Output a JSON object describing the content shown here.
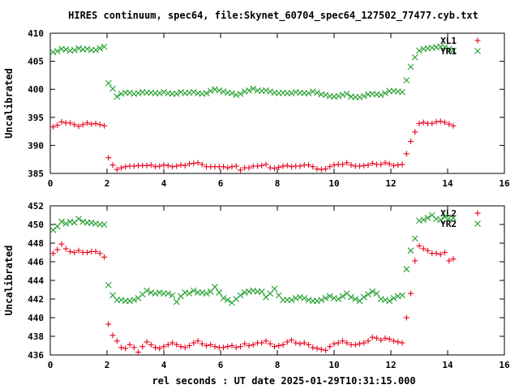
{
  "figure": {
    "title": "HIRES continuum, spec64, file:Skynet_60704_spec64_127502_77477.cyb.txt"
  },
  "colors": {
    "L": "#e8001c",
    "R": "#1e9e2a",
    "axis": "#000000"
  },
  "chart_data": [
    {
      "type": "scatter",
      "xlabel": "",
      "ylabel": "Uncalibrated",
      "xlim": [
        0,
        16
      ],
      "ylim": [
        385,
        410
      ],
      "xticks": [
        "0",
        "2",
        "4",
        "6",
        "8",
        "10",
        "12",
        "14",
        "16"
      ],
      "yticks": [
        "385",
        "390",
        "395",
        "400",
        "405",
        "410"
      ],
      "grid": false,
      "legend_position": "top-right",
      "series": [
        {
          "name": "XL1",
          "marker": "plus",
          "x": [
            0.1,
            0.25,
            0.4,
            0.55,
            0.7,
            0.85,
            1.0,
            1.15,
            1.3,
            1.45,
            1.6,
            1.75,
            1.9,
            2.05,
            2.2,
            2.35,
            2.5,
            2.65,
            2.8,
            2.95,
            3.1,
            3.25,
            3.4,
            3.55,
            3.7,
            3.85,
            4.0,
            4.15,
            4.3,
            4.45,
            4.6,
            4.75,
            4.9,
            5.05,
            5.2,
            5.35,
            5.5,
            5.65,
            5.8,
            5.95,
            6.1,
            6.25,
            6.4,
            6.55,
            6.7,
            6.85,
            7.0,
            7.15,
            7.3,
            7.45,
            7.6,
            7.75,
            7.9,
            8.05,
            8.2,
            8.35,
            8.5,
            8.65,
            8.8,
            8.95,
            9.1,
            9.25,
            9.4,
            9.55,
            9.7,
            9.85,
            10.0,
            10.15,
            10.3,
            10.45,
            10.6,
            10.75,
            10.9,
            11.05,
            11.2,
            11.35,
            11.5,
            11.65,
            11.8,
            11.95,
            12.1,
            12.25,
            12.4,
            12.55,
            12.7,
            12.85,
            13.0,
            13.15,
            13.3,
            13.45,
            13.6,
            13.75,
            13.9,
            14.05,
            14.2
          ],
          "y": [
            393.3,
            393.6,
            394.2,
            394.0,
            394.0,
            393.7,
            393.4,
            393.7,
            394.0,
            393.8,
            393.9,
            393.7,
            393.5,
            387.8,
            386.5,
            385.7,
            386.0,
            386.2,
            386.3,
            386.3,
            386.4,
            386.4,
            386.4,
            386.5,
            386.2,
            386.3,
            386.5,
            386.4,
            386.2,
            386.3,
            386.5,
            386.4,
            386.7,
            386.8,
            386.9,
            386.6,
            386.2,
            386.2,
            386.2,
            386.2,
            386.2,
            386.0,
            386.2,
            386.3,
            385.6,
            386.0,
            386.0,
            386.3,
            386.3,
            386.4,
            386.6,
            386.0,
            385.9,
            386.1,
            386.3,
            386.4,
            386.2,
            386.3,
            386.3,
            386.5,
            386.5,
            386.2,
            385.8,
            385.7,
            385.8,
            386.2,
            386.5,
            386.6,
            386.6,
            386.9,
            386.5,
            386.3,
            386.3,
            386.4,
            386.5,
            386.8,
            386.6,
            386.6,
            386.9,
            386.7,
            386.4,
            386.5,
            386.6,
            388.5,
            390.7,
            392.4,
            393.9,
            394.1,
            393.9,
            393.9,
            394.2,
            394.3,
            394.1,
            393.8,
            393.5
          ]
        },
        {
          "name": "YR1",
          "marker": "cross",
          "x": [
            0.1,
            0.25,
            0.4,
            0.55,
            0.7,
            0.85,
            1.0,
            1.15,
            1.3,
            1.45,
            1.6,
            1.75,
            1.9,
            2.05,
            2.2,
            2.35,
            2.5,
            2.65,
            2.8,
            2.95,
            3.1,
            3.25,
            3.4,
            3.55,
            3.7,
            3.85,
            4.0,
            4.15,
            4.3,
            4.45,
            4.6,
            4.75,
            4.9,
            5.05,
            5.2,
            5.35,
            5.5,
            5.65,
            5.8,
            5.95,
            6.1,
            6.25,
            6.4,
            6.55,
            6.7,
            6.85,
            7.0,
            7.15,
            7.3,
            7.45,
            7.6,
            7.75,
            7.9,
            8.05,
            8.2,
            8.35,
            8.5,
            8.65,
            8.8,
            8.95,
            9.1,
            9.25,
            9.4,
            9.55,
            9.7,
            9.85,
            10.0,
            10.15,
            10.3,
            10.45,
            10.6,
            10.75,
            10.9,
            11.05,
            11.2,
            11.35,
            11.5,
            11.65,
            11.8,
            11.95,
            12.1,
            12.25,
            12.4,
            12.55,
            12.7,
            12.85,
            13.0,
            13.15,
            13.3,
            13.45,
            13.6,
            13.75,
            13.9,
            14.05,
            14.2
          ],
          "y": [
            406.6,
            406.8,
            407.2,
            407.1,
            406.9,
            407.0,
            407.3,
            407.1,
            407.2,
            407.0,
            407.0,
            407.3,
            407.6,
            401.1,
            400.1,
            398.7,
            399.2,
            399.4,
            399.4,
            399.2,
            399.3,
            399.5,
            399.4,
            399.4,
            399.3,
            399.3,
            399.5,
            399.3,
            399.2,
            399.2,
            399.5,
            399.3,
            399.4,
            399.5,
            399.3,
            399.2,
            399.3,
            399.7,
            400.0,
            399.8,
            399.6,
            399.4,
            399.3,
            399.0,
            399.2,
            399.6,
            399.8,
            400.1,
            399.8,
            399.7,
            399.8,
            399.6,
            399.4,
            399.3,
            399.4,
            399.3,
            399.3,
            399.5,
            399.4,
            399.3,
            399.3,
            399.6,
            399.4,
            399.1,
            399.0,
            398.8,
            398.7,
            398.8,
            399.0,
            399.2,
            398.7,
            398.6,
            398.6,
            398.8,
            399.1,
            399.2,
            399.1,
            399.0,
            399.3,
            399.7,
            399.7,
            399.6,
            399.5,
            401.6,
            404.0,
            405.7,
            406.9,
            407.2,
            407.3,
            407.4,
            407.5,
            407.6,
            407.5,
            407.2,
            406.9
          ]
        }
      ]
    },
    {
      "type": "scatter",
      "xlabel": "rel seconds : UT date 2025-01-29T10:31:15.000",
      "ylabel": "Uncalibrated",
      "xlim": [
        0,
        16
      ],
      "ylim": [
        436,
        452
      ],
      "xticks": [
        "0",
        "2",
        "4",
        "6",
        "8",
        "10",
        "12",
        "14",
        "16"
      ],
      "yticks": [
        "436",
        "438",
        "440",
        "442",
        "444",
        "446",
        "448",
        "450",
        "452"
      ],
      "grid": false,
      "legend_position": "top-right",
      "series": [
        {
          "name": "XL2",
          "marker": "plus",
          "x": [
            0.1,
            0.25,
            0.4,
            0.55,
            0.7,
            0.85,
            1.0,
            1.15,
            1.3,
            1.45,
            1.6,
            1.75,
            1.9,
            2.05,
            2.2,
            2.35,
            2.5,
            2.65,
            2.8,
            2.95,
            3.1,
            3.25,
            3.4,
            3.55,
            3.7,
            3.85,
            4.0,
            4.15,
            4.3,
            4.45,
            4.6,
            4.75,
            4.9,
            5.05,
            5.2,
            5.35,
            5.5,
            5.65,
            5.8,
            5.95,
            6.1,
            6.25,
            6.4,
            6.55,
            6.7,
            6.85,
            7.0,
            7.15,
            7.3,
            7.45,
            7.6,
            7.75,
            7.9,
            8.05,
            8.2,
            8.35,
            8.5,
            8.65,
            8.8,
            8.95,
            9.1,
            9.25,
            9.4,
            9.55,
            9.7,
            9.85,
            10.0,
            10.15,
            10.3,
            10.45,
            10.6,
            10.75,
            10.9,
            11.05,
            11.2,
            11.35,
            11.5,
            11.65,
            11.8,
            11.95,
            12.1,
            12.25,
            12.4,
            12.55,
            12.7,
            12.85,
            13.0,
            13.15,
            13.3,
            13.45,
            13.6,
            13.75,
            13.9,
            14.05,
            14.2
          ],
          "y": [
            446.9,
            447.3,
            447.9,
            447.4,
            447.1,
            447.0,
            447.2,
            447.0,
            447.0,
            447.1,
            447.1,
            446.9,
            446.5,
            439.3,
            438.1,
            437.5,
            436.8,
            436.7,
            437.1,
            436.8,
            436.3,
            436.9,
            437.4,
            437.1,
            436.8,
            436.7,
            436.9,
            437.1,
            437.3,
            437.1,
            436.9,
            436.8,
            437.0,
            437.3,
            437.5,
            437.2,
            437.0,
            437.1,
            436.9,
            436.8,
            436.8,
            436.9,
            437.0,
            436.8,
            436.9,
            437.2,
            437.0,
            437.1,
            437.3,
            437.3,
            437.5,
            437.2,
            436.9,
            437.0,
            437.1,
            437.4,
            437.6,
            437.3,
            437.2,
            437.3,
            437.1,
            436.8,
            436.7,
            436.6,
            436.5,
            436.9,
            437.2,
            437.3,
            437.5,
            437.3,
            437.1,
            437.1,
            437.2,
            437.3,
            437.5,
            437.9,
            437.8,
            437.6,
            437.8,
            437.7,
            437.5,
            437.4,
            437.3,
            440.0,
            442.6,
            446.1,
            447.7,
            447.4,
            447.2,
            446.9,
            446.9,
            446.8,
            447.0,
            446.1,
            446.3
          ]
        },
        {
          "name": "YR2",
          "marker": "cross",
          "x": [
            0.1,
            0.25,
            0.4,
            0.55,
            0.7,
            0.85,
            1.0,
            1.15,
            1.3,
            1.45,
            1.6,
            1.75,
            1.9,
            2.05,
            2.2,
            2.35,
            2.5,
            2.65,
            2.8,
            2.95,
            3.1,
            3.25,
            3.4,
            3.55,
            3.7,
            3.85,
            4.0,
            4.15,
            4.3,
            4.45,
            4.6,
            4.75,
            4.9,
            5.05,
            5.2,
            5.35,
            5.5,
            5.65,
            5.8,
            5.95,
            6.1,
            6.25,
            6.4,
            6.55,
            6.7,
            6.85,
            7.0,
            7.15,
            7.3,
            7.45,
            7.6,
            7.75,
            7.9,
            8.05,
            8.2,
            8.35,
            8.5,
            8.65,
            8.8,
            8.95,
            9.1,
            9.25,
            9.4,
            9.55,
            9.7,
            9.85,
            10.0,
            10.15,
            10.3,
            10.45,
            10.6,
            10.75,
            10.9,
            11.05,
            11.2,
            11.35,
            11.5,
            11.65,
            11.8,
            11.95,
            12.1,
            12.25,
            12.4,
            12.55,
            12.7,
            12.85,
            13.0,
            13.15,
            13.3,
            13.45,
            13.6,
            13.75,
            13.9,
            14.05,
            14.2
          ],
          "y": [
            449.4,
            449.8,
            450.3,
            450.1,
            450.3,
            450.2,
            450.6,
            450.3,
            450.2,
            450.2,
            450.1,
            450.0,
            450.0,
            443.5,
            442.4,
            441.9,
            441.9,
            441.8,
            441.8,
            441.9,
            442.1,
            442.5,
            442.9,
            442.7,
            442.6,
            442.7,
            442.6,
            442.6,
            442.4,
            441.7,
            442.3,
            442.7,
            442.6,
            442.9,
            442.7,
            442.7,
            442.6,
            442.8,
            443.3,
            442.7,
            442.1,
            441.9,
            441.6,
            442.0,
            442.4,
            442.7,
            442.8,
            442.9,
            442.8,
            442.8,
            442.2,
            442.6,
            443.1,
            442.4,
            441.9,
            441.9,
            441.9,
            442.1,
            442.2,
            442.1,
            441.9,
            441.8,
            441.8,
            441.9,
            442.1,
            442.3,
            442.1,
            442.0,
            442.3,
            442.6,
            442.2,
            442.0,
            441.8,
            442.2,
            442.5,
            442.8,
            442.6,
            442.0,
            441.9,
            441.8,
            442.1,
            442.3,
            442.4,
            445.2,
            447.2,
            448.5,
            450.4,
            450.5,
            450.7,
            451.0,
            450.6,
            450.5,
            450.8,
            450.6,
            450.7
          ]
        }
      ]
    }
  ]
}
